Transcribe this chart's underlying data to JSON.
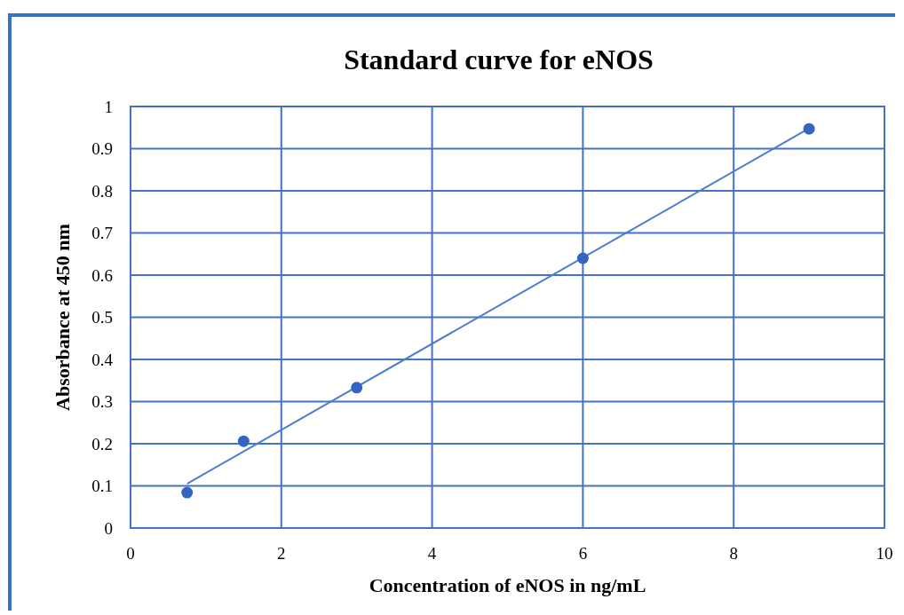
{
  "chart_data": {
    "type": "scatter",
    "title": "Standard curve for eNOS",
    "xlabel": "Concentration of eNOS in ng/mL",
    "ylabel": "Absorbance at 450 nm",
    "xlim": [
      0,
      10
    ],
    "xticks": [
      0,
      2,
      4,
      6,
      8,
      10
    ],
    "ylim": [
      0,
      1
    ],
    "yticks": [
      0,
      0.1,
      0.2,
      0.3,
      0.4,
      0.5,
      0.6,
      0.7,
      0.8,
      0.9,
      1
    ],
    "grid": true,
    "series": [
      {
        "color": "#3565c2",
        "marker": "circle",
        "x": [
          0.75,
          1.5,
          3,
          6,
          9
        ],
        "values": [
          0.084,
          0.206,
          0.333,
          0.64,
          0.947
        ]
      },
      {
        "type": "line",
        "color": "#4a7fd0",
        "marker": "none",
        "x": [
          0.75,
          9
        ],
        "values": [
          0.105,
          0.948
        ]
      }
    ]
  }
}
